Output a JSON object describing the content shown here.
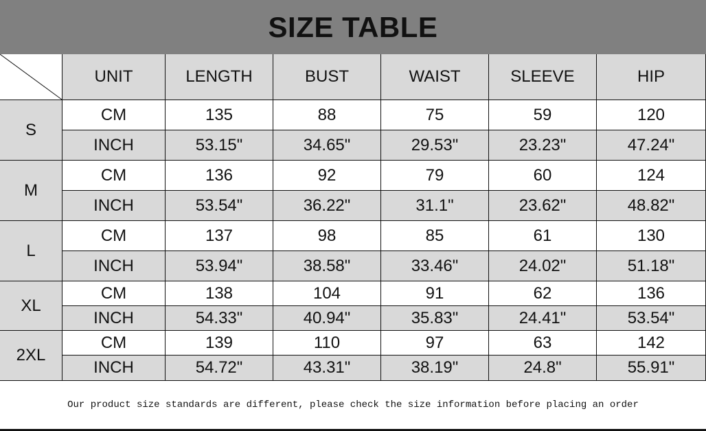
{
  "title": "SIZE TABLE",
  "header": [
    "UNIT",
    "LENGTH",
    "BUST",
    "WAIST",
    "SLEEVE",
    "HIP"
  ],
  "sizes": [
    {
      "size": "S",
      "rows": [
        {
          "unit": "CM",
          "values": [
            "135",
            "88",
            "75",
            "59",
            "120"
          ]
        },
        {
          "unit": "INCH",
          "values": [
            "53.15\"",
            "34.65\"",
            "29.53\"",
            "23.23\"",
            "47.24\""
          ]
        }
      ]
    },
    {
      "size": "M",
      "rows": [
        {
          "unit": "CM",
          "values": [
            "136",
            "92",
            "79",
            "60",
            "124"
          ]
        },
        {
          "unit": "INCH",
          "values": [
            "53.54\"",
            "36.22\"",
            "31.1\"",
            "23.62\"",
            "48.82\""
          ]
        }
      ]
    },
    {
      "size": "L",
      "rows": [
        {
          "unit": "CM",
          "values": [
            "137",
            "98",
            "85",
            "61",
            "130"
          ]
        },
        {
          "unit": "INCH",
          "values": [
            "53.94\"",
            "38.58\"",
            "33.46\"",
            "24.02\"",
            "51.18\""
          ]
        }
      ]
    },
    {
      "size": "XL",
      "rows": [
        {
          "unit": "CM",
          "values": [
            "138",
            "104",
            "91",
            "62",
            "136"
          ]
        },
        {
          "unit": "INCH",
          "values": [
            "54.33\"",
            "40.94\"",
            "35.83\"",
            "24.41\"",
            "53.54\""
          ]
        }
      ]
    },
    {
      "size": "2XL",
      "rows": [
        {
          "unit": "CM",
          "values": [
            "139",
            "110",
            "97",
            "63",
            "142"
          ]
        },
        {
          "unit": "INCH",
          "values": [
            "54.72\"",
            "43.31\"",
            "38.19\"",
            "24.8\"",
            "55.91\""
          ]
        }
      ]
    }
  ],
  "footer_note": "Our product size standards are different, please check the size information before placing an order",
  "colors": {
    "title_bar": "#808080",
    "shaded_cell": "#d9d9d9",
    "white_cell": "#ffffff"
  }
}
